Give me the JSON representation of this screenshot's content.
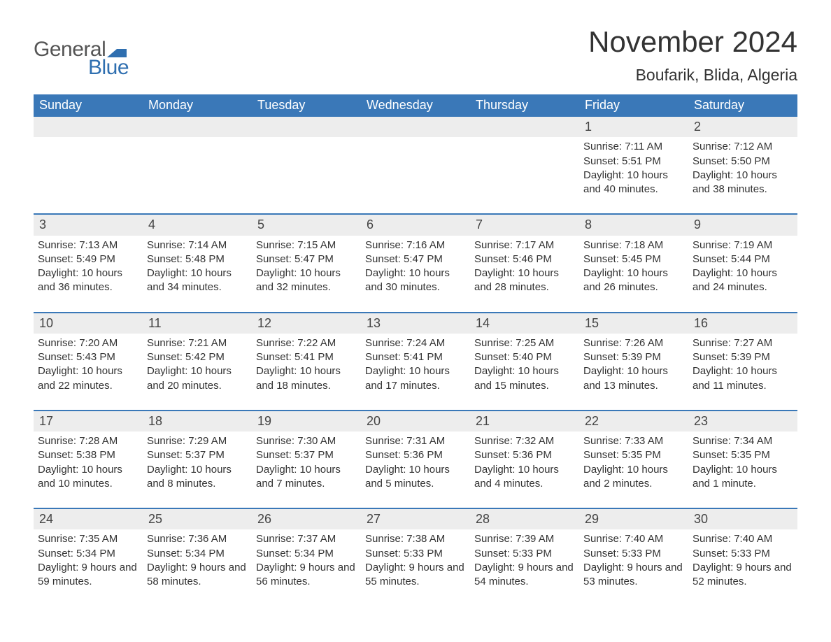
{
  "brand": {
    "general": "General",
    "blue": "Blue",
    "flag_color": "#2f6fb0"
  },
  "title": "November 2024",
  "location": "Boufarik, Blida, Algeria",
  "colors": {
    "header_bg": "#3a78b8",
    "header_text": "#ffffff",
    "daynum_bg": "#ededed",
    "week_border": "#3a78b8",
    "text": "#333333",
    "background": "#ffffff"
  },
  "weekdays": [
    "Sunday",
    "Monday",
    "Tuesday",
    "Wednesday",
    "Thursday",
    "Friday",
    "Saturday"
  ],
  "weeks": [
    [
      {
        "n": "",
        "empty": true
      },
      {
        "n": "",
        "empty": true
      },
      {
        "n": "",
        "empty": true
      },
      {
        "n": "",
        "empty": true
      },
      {
        "n": "",
        "empty": true
      },
      {
        "n": "1",
        "sunrise": "Sunrise: 7:11 AM",
        "sunset": "Sunset: 5:51 PM",
        "daylight": "Daylight: 10 hours and 40 minutes."
      },
      {
        "n": "2",
        "sunrise": "Sunrise: 7:12 AM",
        "sunset": "Sunset: 5:50 PM",
        "daylight": "Daylight: 10 hours and 38 minutes."
      }
    ],
    [
      {
        "n": "3",
        "sunrise": "Sunrise: 7:13 AM",
        "sunset": "Sunset: 5:49 PM",
        "daylight": "Daylight: 10 hours and 36 minutes."
      },
      {
        "n": "4",
        "sunrise": "Sunrise: 7:14 AM",
        "sunset": "Sunset: 5:48 PM",
        "daylight": "Daylight: 10 hours and 34 minutes."
      },
      {
        "n": "5",
        "sunrise": "Sunrise: 7:15 AM",
        "sunset": "Sunset: 5:47 PM",
        "daylight": "Daylight: 10 hours and 32 minutes."
      },
      {
        "n": "6",
        "sunrise": "Sunrise: 7:16 AM",
        "sunset": "Sunset: 5:47 PM",
        "daylight": "Daylight: 10 hours and 30 minutes."
      },
      {
        "n": "7",
        "sunrise": "Sunrise: 7:17 AM",
        "sunset": "Sunset: 5:46 PM",
        "daylight": "Daylight: 10 hours and 28 minutes."
      },
      {
        "n": "8",
        "sunrise": "Sunrise: 7:18 AM",
        "sunset": "Sunset: 5:45 PM",
        "daylight": "Daylight: 10 hours and 26 minutes."
      },
      {
        "n": "9",
        "sunrise": "Sunrise: 7:19 AM",
        "sunset": "Sunset: 5:44 PM",
        "daylight": "Daylight: 10 hours and 24 minutes."
      }
    ],
    [
      {
        "n": "10",
        "sunrise": "Sunrise: 7:20 AM",
        "sunset": "Sunset: 5:43 PM",
        "daylight": "Daylight: 10 hours and 22 minutes."
      },
      {
        "n": "11",
        "sunrise": "Sunrise: 7:21 AM",
        "sunset": "Sunset: 5:42 PM",
        "daylight": "Daylight: 10 hours and 20 minutes."
      },
      {
        "n": "12",
        "sunrise": "Sunrise: 7:22 AM",
        "sunset": "Sunset: 5:41 PM",
        "daylight": "Daylight: 10 hours and 18 minutes."
      },
      {
        "n": "13",
        "sunrise": "Sunrise: 7:24 AM",
        "sunset": "Sunset: 5:41 PM",
        "daylight": "Daylight: 10 hours and 17 minutes."
      },
      {
        "n": "14",
        "sunrise": "Sunrise: 7:25 AM",
        "sunset": "Sunset: 5:40 PM",
        "daylight": "Daylight: 10 hours and 15 minutes."
      },
      {
        "n": "15",
        "sunrise": "Sunrise: 7:26 AM",
        "sunset": "Sunset: 5:39 PM",
        "daylight": "Daylight: 10 hours and 13 minutes."
      },
      {
        "n": "16",
        "sunrise": "Sunrise: 7:27 AM",
        "sunset": "Sunset: 5:39 PM",
        "daylight": "Daylight: 10 hours and 11 minutes."
      }
    ],
    [
      {
        "n": "17",
        "sunrise": "Sunrise: 7:28 AM",
        "sunset": "Sunset: 5:38 PM",
        "daylight": "Daylight: 10 hours and 10 minutes."
      },
      {
        "n": "18",
        "sunrise": "Sunrise: 7:29 AM",
        "sunset": "Sunset: 5:37 PM",
        "daylight": "Daylight: 10 hours and 8 minutes."
      },
      {
        "n": "19",
        "sunrise": "Sunrise: 7:30 AM",
        "sunset": "Sunset: 5:37 PM",
        "daylight": "Daylight: 10 hours and 7 minutes."
      },
      {
        "n": "20",
        "sunrise": "Sunrise: 7:31 AM",
        "sunset": "Sunset: 5:36 PM",
        "daylight": "Daylight: 10 hours and 5 minutes."
      },
      {
        "n": "21",
        "sunrise": "Sunrise: 7:32 AM",
        "sunset": "Sunset: 5:36 PM",
        "daylight": "Daylight: 10 hours and 4 minutes."
      },
      {
        "n": "22",
        "sunrise": "Sunrise: 7:33 AM",
        "sunset": "Sunset: 5:35 PM",
        "daylight": "Daylight: 10 hours and 2 minutes."
      },
      {
        "n": "23",
        "sunrise": "Sunrise: 7:34 AM",
        "sunset": "Sunset: 5:35 PM",
        "daylight": "Daylight: 10 hours and 1 minute."
      }
    ],
    [
      {
        "n": "24",
        "sunrise": "Sunrise: 7:35 AM",
        "sunset": "Sunset: 5:34 PM",
        "daylight": "Daylight: 9 hours and 59 minutes."
      },
      {
        "n": "25",
        "sunrise": "Sunrise: 7:36 AM",
        "sunset": "Sunset: 5:34 PM",
        "daylight": "Daylight: 9 hours and 58 minutes."
      },
      {
        "n": "26",
        "sunrise": "Sunrise: 7:37 AM",
        "sunset": "Sunset: 5:34 PM",
        "daylight": "Daylight: 9 hours and 56 minutes."
      },
      {
        "n": "27",
        "sunrise": "Sunrise: 7:38 AM",
        "sunset": "Sunset: 5:33 PM",
        "daylight": "Daylight: 9 hours and 55 minutes."
      },
      {
        "n": "28",
        "sunrise": "Sunrise: 7:39 AM",
        "sunset": "Sunset: 5:33 PM",
        "daylight": "Daylight: 9 hours and 54 minutes."
      },
      {
        "n": "29",
        "sunrise": "Sunrise: 7:40 AM",
        "sunset": "Sunset: 5:33 PM",
        "daylight": "Daylight: 9 hours and 53 minutes."
      },
      {
        "n": "30",
        "sunrise": "Sunrise: 7:40 AM",
        "sunset": "Sunset: 5:33 PM",
        "daylight": "Daylight: 9 hours and 52 minutes."
      }
    ]
  ]
}
